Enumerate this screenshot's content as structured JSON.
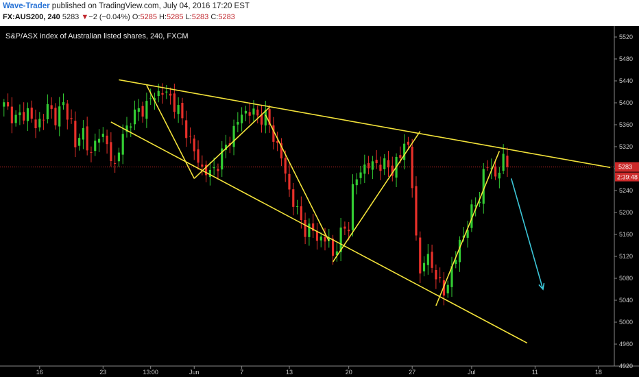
{
  "header": {
    "author": "Wave-Trader",
    "published": " published on TradingView.com, July 04, 2016 17:20 EST",
    "symbol": "FX:AUS200, 240",
    "last": "5283",
    "change_arrow": "▼",
    "change": "−2 (−0.04%)",
    "o_label": "O:",
    "o": "5285",
    "h_label": "H:",
    "h": "5285",
    "l_label": "L:",
    "l": "5283",
    "c_label": "C:",
    "c": "5283"
  },
  "colors": {
    "background": "#000000",
    "up": "#33cc33",
    "down": "#e8302a",
    "trendline": "#f2e23a",
    "projection_arrow": "#3cc6d8",
    "price_line": "#cc2a2a"
  },
  "chart_data": {
    "type": "candlestick",
    "title": "S&P/ASX index of Australian listed shares, 240, FXCM",
    "ylim": [
      4920,
      5540
    ],
    "y_ticks": [
      4920,
      4960,
      5000,
      5040,
      5080,
      5120,
      5160,
      5200,
      5240,
      5280,
      5320,
      5360,
      5400,
      5440,
      5480,
      5520
    ],
    "x_ticks": [
      {
        "label": "16",
        "bar": 9
      },
      {
        "label": "23",
        "bar": 25
      },
      {
        "label": "13:00",
        "bar": 37
      },
      {
        "label": "Jun",
        "bar": 48
      },
      {
        "label": "7",
        "bar": 60
      },
      {
        "label": "13",
        "bar": 72
      },
      {
        "label": "20",
        "bar": 87
      },
      {
        "label": "27",
        "bar": 103
      },
      {
        "label": "Jul",
        "bar": 118
      },
      {
        "label": "11",
        "bar": 134
      },
      {
        "label": "18",
        "bar": 150
      }
    ],
    "x_bar_range": [
      -1,
      154
    ],
    "current_price": "5283",
    "countdown": "2:39:48",
    "anchors": [
      [
        0,
        5395
      ],
      [
        3,
        5370
      ],
      [
        6,
        5385
      ],
      [
        8,
        5355
      ],
      [
        11,
        5390
      ],
      [
        13,
        5375
      ],
      [
        15,
        5395
      ],
      [
        17,
        5365
      ],
      [
        18,
        5320
      ],
      [
        20,
        5350
      ],
      [
        22,
        5300
      ],
      [
        24,
        5350
      ],
      [
        26,
        5320
      ],
      [
        28,
        5285
      ],
      [
        30,
        5340
      ],
      [
        32,
        5370
      ],
      [
        34,
        5385
      ],
      [
        36,
        5395
      ],
      [
        38,
        5415
      ],
      [
        40,
        5420
      ],
      [
        42,
        5410
      ],
      [
        44,
        5385
      ],
      [
        46,
        5350
      ],
      [
        48,
        5310
      ],
      [
        50,
        5280
      ],
      [
        52,
        5270
      ],
      [
        54,
        5290
      ],
      [
        56,
        5320
      ],
      [
        58,
        5350
      ],
      [
        60,
        5380
      ],
      [
        62,
        5385
      ],
      [
        64,
        5375
      ],
      [
        66,
        5375
      ],
      [
        68,
        5340
      ],
      [
        70,
        5300
      ],
      [
        72,
        5240
      ],
      [
        74,
        5200
      ],
      [
        76,
        5170
      ],
      [
        78,
        5165
      ],
      [
        80,
        5150
      ],
      [
        82,
        5150
      ],
      [
        83,
        5120
      ],
      [
        85,
        5160
      ],
      [
        87,
        5180
      ],
      [
        88,
        5240
      ],
      [
        89,
        5260
      ],
      [
        90,
        5280
      ],
      [
        92,
        5285
      ],
      [
        94,
        5290
      ],
      [
        96,
        5285
      ],
      [
        98,
        5280
      ],
      [
        100,
        5300
      ],
      [
        101,
        5330
      ],
      [
        102,
        5320
      ],
      [
        103,
        5250
      ],
      [
        104,
        5150
      ],
      [
        105,
        5090
      ],
      [
        106,
        5120
      ],
      [
        108,
        5100
      ],
      [
        109,
        5090
      ],
      [
        110,
        5070
      ],
      [
        111,
        5050
      ],
      [
        112,
        5070
      ],
      [
        113,
        5100
      ],
      [
        114,
        5120
      ],
      [
        116,
        5160
      ],
      [
        118,
        5200
      ],
      [
        120,
        5230
      ],
      [
        121,
        5270
      ],
      [
        122,
        5285
      ],
      [
        123,
        5280
      ],
      [
        124,
        5265
      ],
      [
        125,
        5280
      ],
      [
        126,
        5295
      ],
      [
        127,
        5283
      ]
    ],
    "trendlines": [
      {
        "name": "upper-resistance",
        "from": [
          29,
          5442
        ],
        "to": [
          153,
          5282
        ]
      },
      {
        "name": "lower-support",
        "from": [
          27,
          5365
        ],
        "to": [
          132,
          4962
        ]
      },
      {
        "name": "wave-a-down",
        "from": [
          36,
          5432
        ],
        "to": [
          48,
          5262
        ]
      },
      {
        "name": "wave-b-up",
        "from": [
          48,
          5262
        ],
        "to": [
          67,
          5392
        ]
      },
      {
        "name": "wave-c-down",
        "from": [
          66,
          5378
        ],
        "to": [
          82,
          5148
        ]
      },
      {
        "name": "channel-up-1",
        "from": [
          83,
          5110
        ],
        "to": [
          105,
          5348
        ]
      },
      {
        "name": "channel-up-2",
        "from": [
          109,
          5030
        ],
        "to": [
          125,
          5312
        ]
      }
    ],
    "projection": {
      "from": [
        128,
        5262
      ],
      "to": [
        136,
        5060
      ]
    }
  }
}
